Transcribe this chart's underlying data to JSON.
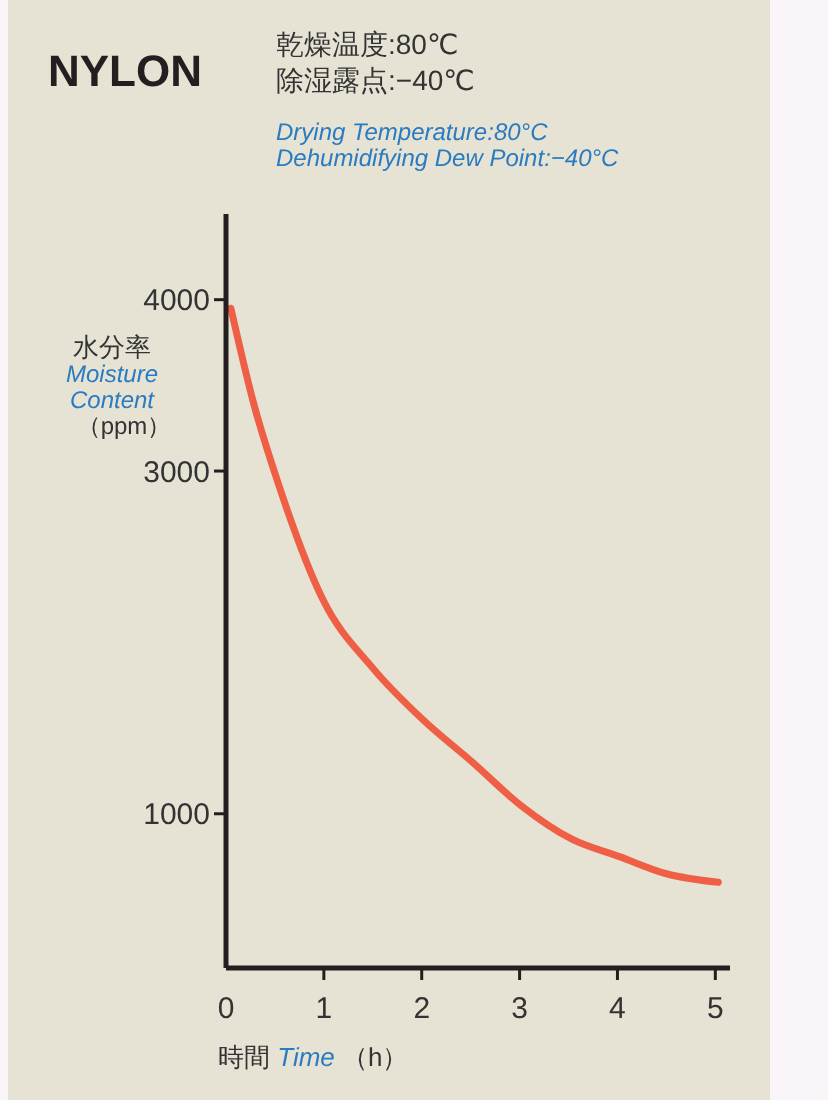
{
  "chart_data": {
    "type": "line",
    "title": "NYLON",
    "annotations": [
      "乾燥温度:80℃",
      "除湿露点:−40℃",
      "Drying Temperature:80°C",
      "Dehumidifying Dew Point:−40°C"
    ],
    "ylabel": "水分率\nMoisture\nContent\n（ppm）",
    "xlabel": "時間 Time （h）",
    "series": [
      {
        "color": "#ef5f45",
        "x": [
          0.05,
          0.28,
          0.55,
          0.99,
          1.5,
          2.01,
          2.52,
          3.01,
          3.54,
          4.02,
          4.5,
          5.03
        ],
        "values": [
          3950,
          3400,
          2900,
          2250,
          1850,
          1550,
          1300,
          1050,
          850,
          750,
          650,
          600
        ]
      }
    ],
    "xlim": [
      0,
      5.15
    ],
    "ylim": [
      100,
      4500
    ],
    "xticks": [
      0,
      1,
      2,
      3,
      4,
      5
    ],
    "yticks": [
      1000,
      3000,
      4000
    ],
    "grid": false,
    "marker": "none",
    "line_style": "solid"
  }
}
